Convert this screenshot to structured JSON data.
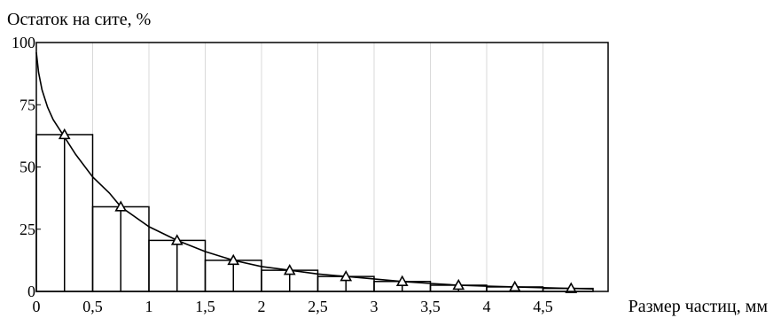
{
  "chart_data": {
    "type": "line",
    "title": "",
    "ylabel": "Остаток на сите, %",
    "xlabel": "Размер частиц, мм",
    "xlim": [
      0,
      5
    ],
    "ylim": [
      0,
      100
    ],
    "x_ticks": [
      "0",
      "0,5",
      "1",
      "1,5",
      "2",
      "2,5",
      "3",
      "3,5",
      "4",
      "4,5"
    ],
    "y_ticks": [
      "0",
      "25",
      "50",
      "75",
      "100"
    ],
    "grid": "vertical",
    "histogram": {
      "bins": [
        {
          "x0": 0.0,
          "x1": 0.5,
          "value": 63
        },
        {
          "x0": 0.5,
          "x1": 1.0,
          "value": 34
        },
        {
          "x0": 1.0,
          "x1": 1.5,
          "value": 20.5
        },
        {
          "x0": 1.5,
          "x1": 2.0,
          "value": 12.5
        },
        {
          "x0": 2.0,
          "x1": 2.5,
          "value": 8.5
        },
        {
          "x0": 2.5,
          "x1": 3.0,
          "value": 6
        },
        {
          "x0": 3.0,
          "x1": 3.5,
          "value": 4
        },
        {
          "x0": 3.5,
          "x1": 4.0,
          "value": 2.5
        },
        {
          "x0": 4.0,
          "x1": 4.5,
          "value": 1.8
        },
        {
          "x0": 4.5,
          "x1": 5.0,
          "value": 1.2
        }
      ]
    },
    "markers": {
      "shape": "triangle",
      "points": [
        {
          "x": 0.25,
          "y": 63
        },
        {
          "x": 0.75,
          "y": 34
        },
        {
          "x": 1.25,
          "y": 20.5
        },
        {
          "x": 1.75,
          "y": 12.5
        },
        {
          "x": 2.25,
          "y": 8.5
        },
        {
          "x": 2.75,
          "y": 6
        },
        {
          "x": 3.25,
          "y": 4
        },
        {
          "x": 3.75,
          "y": 2.5
        },
        {
          "x": 4.25,
          "y": 1.8
        },
        {
          "x": 4.75,
          "y": 1.2
        }
      ]
    },
    "curve": {
      "x": [
        0.0,
        0.02,
        0.05,
        0.1,
        0.15,
        0.25,
        0.35,
        0.5,
        0.65,
        0.75,
        1.0,
        1.25,
        1.5,
        1.75,
        2.0,
        2.25,
        2.5,
        2.75,
        3.0,
        3.25,
        3.5,
        3.75,
        4.0,
        4.25,
        4.5,
        4.75,
        5.0
      ],
      "y": [
        96,
        88,
        81,
        74,
        69,
        62,
        55,
        46,
        39.5,
        34,
        26,
        20.5,
        16,
        12.5,
        10,
        8.5,
        7,
        6,
        5,
        4,
        3.2,
        2.5,
        2.1,
        1.8,
        1.5,
        1.2,
        1.0
      ]
    },
    "colors": {
      "line": "#000000",
      "background": "#ffffff"
    }
  }
}
